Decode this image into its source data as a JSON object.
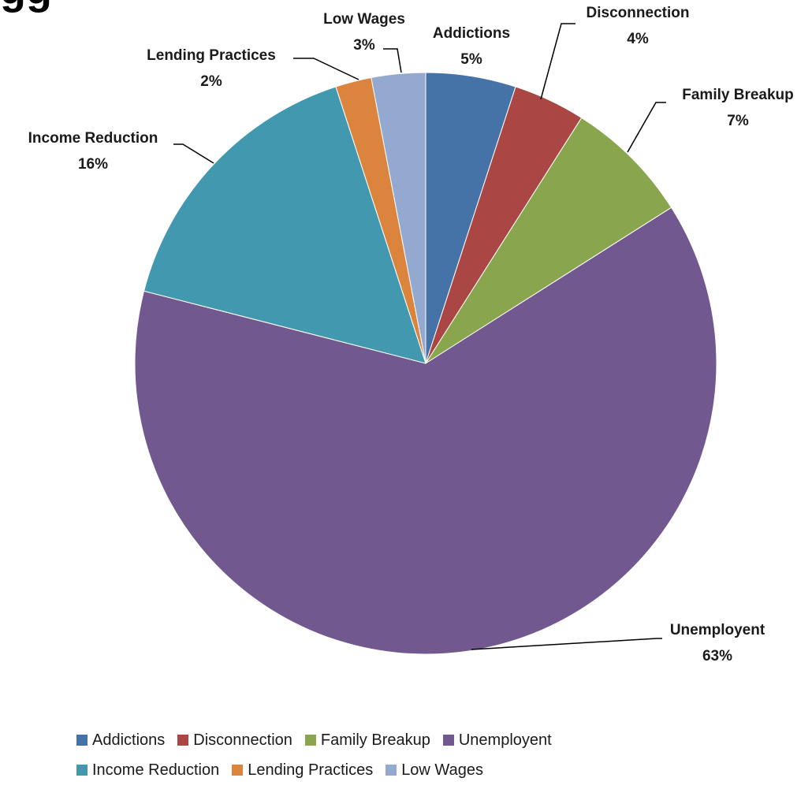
{
  "chart_data": {
    "type": "pie",
    "title": "gg",
    "categories": [
      "Addictions",
      "Disconnection",
      "Family Breakup",
      "Unemployent",
      "Income Reduction",
      "Lending Practices",
      "Low Wages"
    ],
    "values": [
      5,
      4,
      7,
      63,
      16,
      2,
      3
    ],
    "labels": [
      "5%",
      "4%",
      "7%",
      "63%",
      "16%",
      "2%",
      "3%"
    ],
    "colors": [
      "#4572A7",
      "#AA4643",
      "#89A54E",
      "#71588F",
      "#4198AF",
      "#DB843D",
      "#93A9CF"
    ],
    "legend_position": "bottom"
  }
}
